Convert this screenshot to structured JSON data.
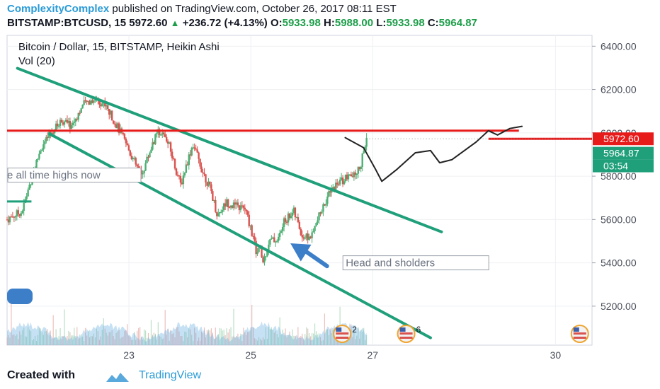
{
  "header": {
    "author": "ComplexityComplex",
    "published": "published on TradingView.com, October 26, 2017 08:11 EST",
    "symbol": "BITSTAMP:BTCUSD, 15",
    "last": "5972.60",
    "change": "+236.72 (+4.13%)",
    "o_label": "O:",
    "o": "5933.98",
    "h_label": "H:",
    "h": "5988.00",
    "l_label": "L:",
    "l": "5933.98",
    "c_label": "C:",
    "c": "5964.87"
  },
  "footer": {
    "created_with": "Created with",
    "brand": "TradingView"
  },
  "colors": {
    "channel": "#1f9f7a",
    "resistance": "#e81b1b",
    "up": "#4caf72",
    "down": "#d9534f",
    "volume": "#5fa8e0",
    "arrow": "#3d7ec9",
    "drawing": "#222222",
    "price_tag": "#e81b1b",
    "close_tag": "#1f9f7a"
  },
  "chart_data": {
    "type": "candlestick",
    "title": "Bitcoin / Dollar, 15, BITSTAMP, Heikin Ashi",
    "volume_label": "Vol (20)",
    "y_ticks": [
      5200,
      5400,
      5600,
      5800,
      6000,
      6200,
      6400
    ],
    "y_tick_labels": [
      "5200.00",
      "5400.00",
      "5600.00",
      "5800.00",
      "6000.00",
      "6200.00",
      "6400.00"
    ],
    "ylim": [
      5020,
      6450
    ],
    "x_ticks": [
      23,
      25,
      27,
      30
    ],
    "x_tick_labels": [
      "23",
      "25",
      "27",
      "30"
    ],
    "xlim": [
      21.0,
      30.6
    ],
    "price_tags": {
      "last": "5972.60",
      "close": "5964.87",
      "countdown": "03:54"
    },
    "annotations": [
      {
        "text": "e all time highs now",
        "x": 21.0,
        "price": 5805
      },
      {
        "text": "Head and sholders",
        "x": 26.5,
        "price": 5400
      }
    ],
    "event_badges": [
      {
        "x": 26.5,
        "count": "2"
      },
      {
        "x": 27.55,
        "count": "6"
      },
      {
        "x": 30.4,
        "count": ""
      }
    ],
    "resistance_line": {
      "x": [
        21.0,
        29.4
      ],
      "price": 6010
    },
    "last_price_line": {
      "x": [
        28.9,
        30.6
      ],
      "price": 5972.6
    },
    "channel_upper": {
      "x": [
        21.17,
        28.13
      ],
      "price": [
        6298,
        5543
      ]
    },
    "channel_lower": {
      "x": [
        21.7,
        27.95
      ],
      "price": [
        5995,
        5054
      ]
    },
    "previous_high_stub": {
      "x": [
        21.0,
        21.4
      ],
      "price": 5683
    },
    "projection_path": [
      [
        26.55,
        5978
      ],
      [
        26.85,
        5932
      ],
      [
        27.05,
        5830
      ],
      [
        27.15,
        5776
      ],
      [
        27.4,
        5832
      ],
      [
        27.7,
        5908
      ],
      [
        27.95,
        5918
      ],
      [
        28.1,
        5862
      ],
      [
        28.3,
        5876
      ],
      [
        28.7,
        5958
      ],
      [
        28.9,
        6010
      ],
      [
        29.05,
        5990
      ],
      [
        29.25,
        6020
      ],
      [
        29.45,
        6030
      ]
    ],
    "arrow": {
      "from": [
        26.25,
        5385
      ],
      "to": [
        25.65,
        5490
      ]
    },
    "price_path": [
      [
        21.0,
        5600
      ],
      [
        21.25,
        5640
      ],
      [
        21.4,
        5790
      ],
      [
        21.55,
        5925
      ],
      [
        21.7,
        5990
      ],
      [
        21.9,
        6060
      ],
      [
        22.05,
        6030
      ],
      [
        22.25,
        6130
      ],
      [
        22.45,
        6160
      ],
      [
        22.6,
        6130
      ],
      [
        22.75,
        6060
      ],
      [
        22.9,
        5980
      ],
      [
        23.0,
        5920
      ],
      [
        23.1,
        5860
      ],
      [
        23.2,
        5800
      ],
      [
        23.3,
        5880
      ],
      [
        23.4,
        5960
      ],
      [
        23.5,
        6010
      ],
      [
        23.65,
        5950
      ],
      [
        23.75,
        5850
      ],
      [
        23.85,
        5760
      ],
      [
        23.95,
        5860
      ],
      [
        24.05,
        5950
      ],
      [
        24.2,
        5830
      ],
      [
        24.35,
        5730
      ],
      [
        24.45,
        5620
      ],
      [
        24.6,
        5680
      ],
      [
        24.75,
        5660
      ],
      [
        24.9,
        5650
      ],
      [
        25.0,
        5560
      ],
      [
        25.1,
        5440
      ],
      [
        25.15,
        5470
      ],
      [
        25.2,
        5400
      ],
      [
        25.3,
        5500
      ],
      [
        25.45,
        5510
      ],
      [
        25.55,
        5590
      ],
      [
        25.7,
        5640
      ],
      [
        25.85,
        5520
      ],
      [
        26.0,
        5520
      ],
      [
        26.1,
        5600
      ],
      [
        26.25,
        5700
      ],
      [
        26.4,
        5760
      ],
      [
        26.55,
        5790
      ],
      [
        26.7,
        5800
      ],
      [
        26.8,
        5850
      ],
      [
        26.9,
        5972
      ]
    ]
  }
}
